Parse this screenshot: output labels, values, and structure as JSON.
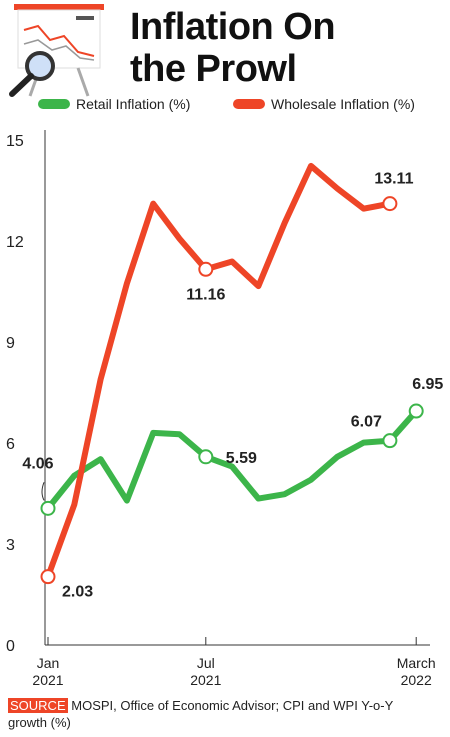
{
  "chart_data": {
    "type": "line",
    "title": "Inflation On\nthe Prowl",
    "categories": [
      "Jan\n2021",
      null,
      null,
      null,
      null,
      null,
      "Jul\n2021",
      null,
      null,
      null,
      null,
      null,
      null,
      null,
      "March\n2022"
    ],
    "series": [
      {
        "name": "Retail Inflation (%)",
        "color": "#3cb54a",
        "values": [
          4.06,
          5.03,
          5.52,
          4.29,
          6.3,
          6.26,
          5.59,
          5.3,
          4.35,
          4.48,
          4.91,
          5.59,
          6.01,
          6.07,
          6.95
        ],
        "value_labels": [
          "4.06",
          null,
          null,
          null,
          null,
          null,
          "5.59",
          null,
          null,
          null,
          null,
          null,
          null,
          "6.07",
          "6.95"
        ]
      },
      {
        "name": "Wholesale Inflation (%)",
        "color": "#ee4527",
        "values": [
          2.03,
          4.17,
          7.89,
          10.74,
          13.11,
          12.07,
          11.16,
          11.39,
          10.66,
          12.54,
          14.23,
          13.56,
          12.96,
          13.11,
          null
        ],
        "value_labels": [
          "2.03",
          null,
          null,
          null,
          null,
          null,
          "11.16",
          null,
          null,
          null,
          null,
          null,
          null,
          "13.11",
          null
        ]
      }
    ],
    "ylim": [
      0,
      15
    ],
    "yticks": [
      0,
      3,
      6,
      9,
      12,
      15
    ],
    "grid": false,
    "source_label": "SOURCE",
    "source": "MOSPI, Office of Economic Advisor; CPI and WPI Y-o-Y growth (%)"
  }
}
